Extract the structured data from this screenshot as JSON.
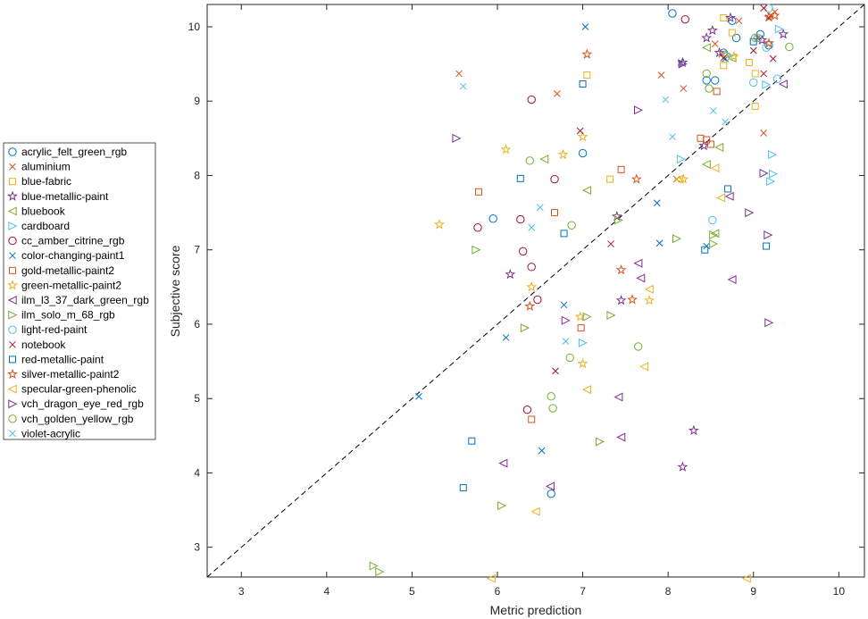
{
  "chart_data": {
    "type": "scatter",
    "xlabel": "Metric prediction",
    "ylabel": "Subjective score",
    "xlim": [
      2.6,
      10.3
    ],
    "ylim": [
      2.6,
      10.3
    ],
    "xticks": [
      3,
      4,
      5,
      6,
      7,
      8,
      9,
      10
    ],
    "yticks": [
      3,
      4,
      5,
      6,
      7,
      8,
      9,
      10
    ],
    "reference_line": "y = x (dashed)",
    "grid": false,
    "legend_position": "outside-left",
    "series": [
      {
        "name": "acrylic_felt_green_rgb",
        "marker": "circle",
        "color": "#0072BD",
        "points": [
          [
            6.63,
            3.72
          ],
          [
            8.05,
            10.18
          ],
          [
            8.45,
            9.28
          ],
          [
            8.55,
            9.28
          ],
          [
            8.65,
            9.65
          ],
          [
            8.75,
            10.08
          ],
          [
            8.8,
            9.85
          ],
          [
            9.08,
            9.9
          ],
          [
            9.18,
            9.75
          ],
          [
            7.0,
            8.3
          ],
          [
            5.95,
            7.42
          ]
        ]
      },
      {
        "name": "aluminium",
        "marker": "x",
        "color": "#D95319",
        "points": [
          [
            5.55,
            9.37
          ],
          [
            6.7,
            9.1
          ],
          [
            7.92,
            9.35
          ],
          [
            8.18,
            9.17
          ],
          [
            8.55,
            9.77
          ],
          [
            8.63,
            9.63
          ],
          [
            8.83,
            10.08
          ],
          [
            9.05,
            9.85
          ],
          [
            9.12,
            8.57
          ],
          [
            9.2,
            10.15
          ],
          [
            9.25,
            10.2
          ],
          [
            8.1,
            7.95
          ]
        ]
      },
      {
        "name": "blue-fabric",
        "marker": "square",
        "color": "#EDB120",
        "points": [
          [
            7.05,
            9.35
          ],
          [
            8.65,
            9.48
          ],
          [
            8.75,
            9.92
          ],
          [
            8.95,
            9.52
          ],
          [
            9.02,
            9.37
          ],
          [
            9.02,
            8.93
          ],
          [
            8.65,
            10.12
          ],
          [
            7.32,
            7.95
          ]
        ]
      },
      {
        "name": "blue-metallic-paint",
        "marker": "star",
        "color": "#7E2F8E",
        "points": [
          [
            6.15,
            6.67
          ],
          [
            7.4,
            7.45
          ],
          [
            7.45,
            6.32
          ],
          [
            8.3,
            4.57
          ],
          [
            8.17,
            4.08
          ],
          [
            8.42,
            8.4
          ],
          [
            8.45,
            9.85
          ],
          [
            8.52,
            9.95
          ],
          [
            8.6,
            9.65
          ],
          [
            8.73,
            10.12
          ],
          [
            9.1,
            9.82
          ],
          [
            9.35,
            9.9
          ],
          [
            8.17,
            9.52
          ]
        ]
      },
      {
        "name": "bluebook",
        "marker": "triangle-left",
        "color": "#77AC30",
        "points": [
          [
            6.55,
            8.22
          ],
          [
            7.05,
            7.8
          ],
          [
            8.45,
            8.15
          ],
          [
            8.55,
            7.22
          ],
          [
            8.6,
            8.38
          ],
          [
            8.45,
            9.72
          ],
          [
            8.75,
            9.58
          ]
        ]
      },
      {
        "name": "cardboard",
        "marker": "triangle-right",
        "color": "#4DBEEE",
        "points": [
          [
            7.0,
            5.75
          ],
          [
            8.15,
            8.22
          ],
          [
            8.7,
            9.62
          ],
          [
            9.15,
            9.22
          ],
          [
            9.2,
            7.92
          ],
          [
            9.22,
            8.28
          ],
          [
            9.23,
            8.02
          ],
          [
            9.3,
            9.97
          ]
        ]
      },
      {
        "name": "cc_amber_citrine_rgb",
        "marker": "circle",
        "color": "#A2142F",
        "points": [
          [
            6.4,
            9.02
          ],
          [
            5.77,
            7.3
          ],
          [
            6.27,
            7.41
          ],
          [
            6.3,
            6.98
          ],
          [
            6.4,
            6.77
          ],
          [
            6.47,
            6.33
          ],
          [
            6.67,
            7.95
          ],
          [
            6.35,
            4.85
          ],
          [
            8.2,
            10.1
          ]
        ]
      },
      {
        "name": "color-changing-paint1",
        "marker": "x",
        "color": "#0072BD",
        "points": [
          [
            5.08,
            5.03
          ],
          [
            6.1,
            5.82
          ],
          [
            6.52,
            4.3
          ],
          [
            6.78,
            6.26
          ],
          [
            7.03,
            10.0
          ],
          [
            7.87,
            7.63
          ],
          [
            7.9,
            7.09
          ],
          [
            8.15,
            9.52
          ],
          [
            8.45,
            7.05
          ],
          [
            8.67,
            9.57
          ]
        ]
      },
      {
        "name": "gold-metallic-paint2",
        "marker": "square",
        "color": "#D95319",
        "points": [
          [
            5.78,
            7.78
          ],
          [
            6.4,
            4.72
          ],
          [
            6.67,
            7.5
          ],
          [
            6.98,
            5.95
          ],
          [
            7.45,
            8.08
          ],
          [
            8.38,
            8.5
          ],
          [
            8.45,
            8.48
          ],
          [
            8.5,
            8.42
          ],
          [
            8.57,
            9.13
          ]
        ]
      },
      {
        "name": "green-metallic-paint2",
        "marker": "star",
        "color": "#EDB120",
        "points": [
          [
            5.32,
            7.34
          ],
          [
            6.1,
            8.35
          ],
          [
            6.4,
            6.5
          ],
          [
            6.77,
            8.28
          ],
          [
            6.97,
            6.1
          ],
          [
            7.0,
            5.47
          ],
          [
            7.0,
            8.52
          ],
          [
            7.78,
            6.32
          ],
          [
            8.18,
            7.95
          ],
          [
            8.67,
            9.63
          ],
          [
            8.77,
            9.6
          ]
        ]
      },
      {
        "name": "ilm_l3_37_dark_green_rgb",
        "marker": "triangle-left",
        "color": "#7E2F8E",
        "points": [
          [
            6.07,
            4.13
          ],
          [
            6.62,
            3.82
          ],
          [
            7.42,
            5.02
          ],
          [
            7.45,
            4.48
          ],
          [
            7.65,
            6.82
          ],
          [
            7.68,
            6.62
          ],
          [
            8.72,
            7.72
          ],
          [
            8.75,
            6.6
          ],
          [
            9.35,
            9.23
          ]
        ]
      },
      {
        "name": "ilm_solo_m_68_rgb",
        "marker": "triangle-right",
        "color": "#77AC30",
        "points": [
          [
            4.55,
            2.75
          ],
          [
            4.62,
            2.67
          ],
          [
            5.75,
            7.0
          ],
          [
            6.05,
            3.56
          ],
          [
            6.32,
            5.95
          ],
          [
            7.05,
            6.1
          ],
          [
            7.2,
            4.42
          ],
          [
            7.33,
            6.12
          ],
          [
            7.42,
            7.4
          ],
          [
            8.1,
            7.15
          ],
          [
            8.53,
            7.2
          ],
          [
            8.53,
            7.08
          ]
        ]
      },
      {
        "name": "light-red-paint",
        "marker": "circle",
        "color": "#4DBEEE",
        "points": [
          [
            8.52,
            7.4
          ],
          [
            9.0,
            9.25
          ],
          [
            9.05,
            9.85
          ],
          [
            9.15,
            9.72
          ],
          [
            9.28,
            9.3
          ],
          [
            9.18,
            10.25
          ],
          [
            8.68,
            9.6
          ]
        ]
      },
      {
        "name": "notebook",
        "marker": "x",
        "color": "#A2142F",
        "points": [
          [
            6.68,
            5.37
          ],
          [
            6.97,
            8.6
          ],
          [
            7.33,
            7.08
          ],
          [
            8.65,
            9.58
          ],
          [
            9.0,
            9.68
          ],
          [
            9.12,
            9.37
          ],
          [
            9.12,
            10.25
          ],
          [
            9.18,
            10.12
          ],
          [
            9.23,
            9.57
          ]
        ]
      },
      {
        "name": "red-metallic-paint",
        "marker": "square",
        "color": "#0072BD",
        "points": [
          [
            5.6,
            3.8
          ],
          [
            5.7,
            4.43
          ],
          [
            6.27,
            7.96
          ],
          [
            6.78,
            7.22
          ],
          [
            7.0,
            9.23
          ],
          [
            8.43,
            7.0
          ],
          [
            8.7,
            7.82
          ],
          [
            9.0,
            9.8
          ],
          [
            9.15,
            7.05
          ]
        ]
      },
      {
        "name": "silver-metallic-paint2",
        "marker": "star",
        "color": "#D95319",
        "points": [
          [
            6.38,
            6.24
          ],
          [
            7.05,
            9.63
          ],
          [
            7.45,
            6.73
          ],
          [
            7.58,
            6.33
          ],
          [
            7.63,
            7.95
          ],
          [
            9.18,
            10.13
          ],
          [
            9.25,
            10.15
          ],
          [
            9.18,
            9.78
          ]
        ]
      },
      {
        "name": "specular-green-phenolic",
        "marker": "triangle-left",
        "color": "#EDB120",
        "points": [
          [
            5.93,
            2.58
          ],
          [
            6.45,
            3.48
          ],
          [
            7.05,
            5.12
          ],
          [
            7.72,
            5.43
          ],
          [
            7.78,
            6.47
          ],
          [
            8.13,
            7.95
          ],
          [
            8.55,
            8.1
          ],
          [
            8.62,
            7.7
          ],
          [
            8.92,
            2.58
          ]
        ]
      },
      {
        "name": "vch_dragon_eye_red_rgb",
        "marker": "triangle-right",
        "color": "#7E2F8E",
        "points": [
          [
            5.52,
            8.5
          ],
          [
            6.8,
            6.05
          ],
          [
            7.65,
            8.88
          ],
          [
            8.17,
            9.5
          ],
          [
            8.95,
            7.5
          ],
          [
            9.12,
            8.03
          ],
          [
            9.17,
            7.2
          ],
          [
            9.18,
            6.02
          ]
        ]
      },
      {
        "name": "vch_golden_yellow_rgb",
        "marker": "circle",
        "color": "#77AC30",
        "points": [
          [
            6.38,
            8.2
          ],
          [
            6.65,
            4.87
          ],
          [
            6.85,
            5.55
          ],
          [
            6.87,
            7.33
          ],
          [
            6.63,
            5.03
          ],
          [
            7.65,
            5.7
          ],
          [
            8.45,
            9.37
          ],
          [
            8.48,
            9.17
          ],
          [
            9.42,
            9.73
          ],
          [
            9.02,
            9.85
          ]
        ]
      },
      {
        "name": "violet-acrylic",
        "marker": "x",
        "color": "#4DBEEE",
        "points": [
          [
            5.6,
            9.2
          ],
          [
            6.4,
            7.3
          ],
          [
            6.5,
            7.57
          ],
          [
            6.8,
            5.77
          ],
          [
            7.97,
            9.02
          ],
          [
            8.05,
            8.52
          ],
          [
            8.53,
            8.87
          ],
          [
            8.67,
            8.72
          ]
        ]
      }
    ]
  }
}
